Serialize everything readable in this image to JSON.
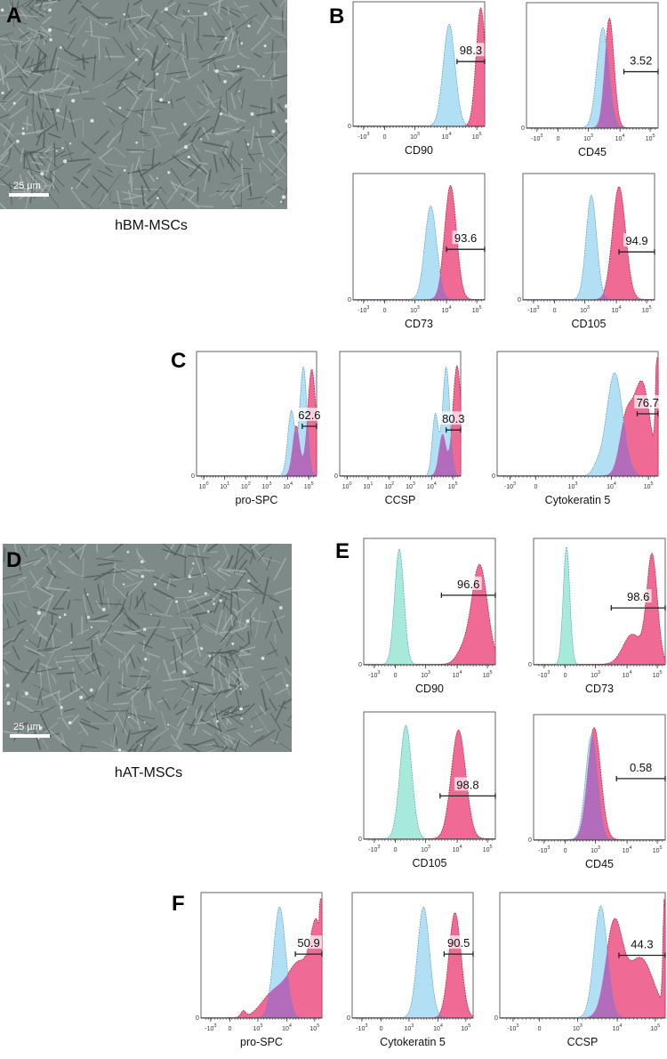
{
  "figure": {
    "panels": {
      "A": {
        "letter": "A",
        "caption": "hBM-MSCs",
        "scale_bar": "25 µm"
      },
      "B": {
        "letter": "B"
      },
      "C": {
        "letter": "C"
      },
      "D": {
        "letter": "D",
        "caption": "hAT-MSCs",
        "scale_bar": "25 µm"
      },
      "E": {
        "letter": "E"
      },
      "F": {
        "letter": "F"
      }
    },
    "colors": {
      "isotype_fill": "#a8dcf2",
      "isotype_fill_E": "#9fe8d6",
      "isotype_line": "#4a8fc0",
      "stained_fill": "#ef6a94",
      "stained_line": "#b8233f",
      "overlap_fill": "#b45ab4",
      "micro_bg": "#7d8a87"
    }
  },
  "chart_data": [
    {
      "panel": "B",
      "type": "area",
      "title": "",
      "xlabel": "CD90",
      "gate_percent": "98.3",
      "x_scale": "biexponential",
      "xticks": [
        "-10^3",
        "0",
        "10^3",
        "10^4",
        "10^5"
      ],
      "ytick": "0",
      "series": [
        {
          "name": "isotype",
          "peak_log10": 4.2
        },
        {
          "name": "stained",
          "peak_log10": 5.2
        }
      ]
    },
    {
      "panel": "B",
      "type": "area",
      "title": "",
      "xlabel": "CD45",
      "gate_percent": "3.52",
      "x_scale": "biexponential",
      "xticks": [
        "-10^3",
        "0",
        "10^3",
        "10^4",
        "10^5"
      ],
      "ytick": "0",
      "series": [
        {
          "name": "isotype",
          "peak_log10": 3.6
        },
        {
          "name": "stained",
          "peak_log10": 3.85
        }
      ]
    },
    {
      "panel": "B",
      "type": "area",
      "title": "",
      "xlabel": "CD73",
      "gate_percent": "93.6",
      "x_scale": "biexponential",
      "xticks": [
        "-10^3",
        "0",
        "10^3",
        "10^4",
        "10^5"
      ],
      "ytick": "0",
      "series": [
        {
          "name": "isotype",
          "peak_log10": 3.6
        },
        {
          "name": "stained",
          "peak_log10": 4.45
        }
      ]
    },
    {
      "panel": "B",
      "type": "area",
      "title": "",
      "xlabel": "CD105",
      "gate_percent": "94.9",
      "x_scale": "biexponential",
      "xticks": [
        "-10^3",
        "0",
        "10^3",
        "10^4",
        "10^5"
      ],
      "ytick": "0",
      "series": [
        {
          "name": "isotype",
          "peak_log10": 3.3
        },
        {
          "name": "stained",
          "peak_log10": 4.4
        }
      ]
    },
    {
      "panel": "C",
      "type": "area",
      "title": "",
      "xlabel": "pro-SPC",
      "gate_percent": "62.6",
      "x_scale": "log",
      "xticks": [
        "10^0",
        "10^1",
        "10^2",
        "10^3",
        "10^4",
        "10^5"
      ],
      "ytick": "0",
      "series": [
        {
          "name": "isotype",
          "peak_log10": 4.4
        },
        {
          "name": "stained",
          "peak_log10": 4.9
        }
      ]
    },
    {
      "panel": "C",
      "type": "area",
      "title": "",
      "xlabel": "CCSP",
      "gate_percent": "80.3",
      "x_scale": "log",
      "xticks": [
        "10^0",
        "10^1",
        "10^2",
        "10^3",
        "10^4",
        "10^5"
      ],
      "ytick": "0",
      "series": [
        {
          "name": "isotype",
          "peak_log10": 4.4
        },
        {
          "name": "stained",
          "peak_log10": 5.0
        }
      ]
    },
    {
      "panel": "C",
      "type": "area",
      "title": "",
      "xlabel": "Cytokeratin 5",
      "gate_percent": "76.7",
      "x_scale": "biexponential",
      "xticks": [
        "-10^3",
        "0",
        "10^3",
        "10^4",
        "10^5"
      ],
      "ytick": "0",
      "series": [
        {
          "name": "isotype",
          "peak_log10": 4.0
        },
        {
          "name": "stained",
          "peak_log10": 4.85
        }
      ]
    },
    {
      "panel": "E",
      "type": "area",
      "title": "",
      "xlabel": "CD90",
      "gate_percent": "96.6",
      "x_scale": "biexponential",
      "xticks": [
        "-10^3",
        "0",
        "10^3",
        "10^4",
        "10^5"
      ],
      "ytick": "0",
      "series": [
        {
          "name": "isotype",
          "peak_log10": 2.2
        },
        {
          "name": "stained",
          "peak_log10": 4.8
        }
      ]
    },
    {
      "panel": "E",
      "type": "area",
      "title": "",
      "xlabel": "CD73",
      "gate_percent": "98.6",
      "x_scale": "biexponential",
      "xticks": [
        "-10^3",
        "0",
        "10^3",
        "10^4",
        "10^5"
      ],
      "ytick": "0",
      "series": [
        {
          "name": "isotype",
          "peak_log10": 2.0
        },
        {
          "name": "stained",
          "peak_log10": 4.8
        }
      ]
    },
    {
      "panel": "E",
      "type": "area",
      "title": "",
      "xlabel": "CD105",
      "gate_percent": "98.8",
      "x_scale": "biexponential",
      "xticks": [
        "-10^3",
        "0",
        "10^3",
        "10^4",
        "10^5"
      ],
      "ytick": "0",
      "series": [
        {
          "name": "isotype",
          "peak_log10": 2.5
        },
        {
          "name": "stained",
          "peak_log10": 4.2
        }
      ]
    },
    {
      "panel": "E",
      "type": "area",
      "title": "",
      "xlabel": "CD45",
      "gate_percent": "0.58",
      "x_scale": "biexponential",
      "xticks": [
        "-10^3",
        "0",
        "10^3",
        "10^4",
        "10^5"
      ],
      "ytick": "0",
      "series": [
        {
          "name": "isotype",
          "peak_log10": 2.9
        },
        {
          "name": "stained",
          "peak_log10": 3.1
        }
      ]
    },
    {
      "panel": "F",
      "type": "area",
      "title": "",
      "xlabel": "pro-SPC",
      "gate_percent": "50.9",
      "x_scale": "biexponential",
      "xticks": [
        "-10^3",
        "0",
        "10^3",
        "10^4",
        "10^5"
      ],
      "ytick": "0",
      "series": [
        {
          "name": "isotype",
          "peak_log10": 3.9
        },
        {
          "name": "stained",
          "peak_log10": 5.1
        }
      ]
    },
    {
      "panel": "F",
      "type": "area",
      "title": "",
      "xlabel": "Cytokeratin 5",
      "gate_percent": "90.5",
      "x_scale": "biexponential",
      "xticks": [
        "-10^3",
        "0",
        "10^3",
        "10^4",
        "10^5"
      ],
      "ytick": "0",
      "series": [
        {
          "name": "isotype",
          "peak_log10": 3.9
        },
        {
          "name": "stained",
          "peak_log10": 4.75
        }
      ]
    },
    {
      "panel": "F",
      "type": "area",
      "title": "",
      "xlabel": "CCSP",
      "gate_percent": "44.3",
      "x_scale": "biexponential",
      "xticks": [
        "-10^3",
        "0",
        "10^3",
        "10^4",
        "10^5"
      ],
      "ytick": "0",
      "series": [
        {
          "name": "isotype",
          "peak_log10": 3.9
        },
        {
          "name": "stained",
          "peak_log10": 4.1
        }
      ]
    }
  ]
}
